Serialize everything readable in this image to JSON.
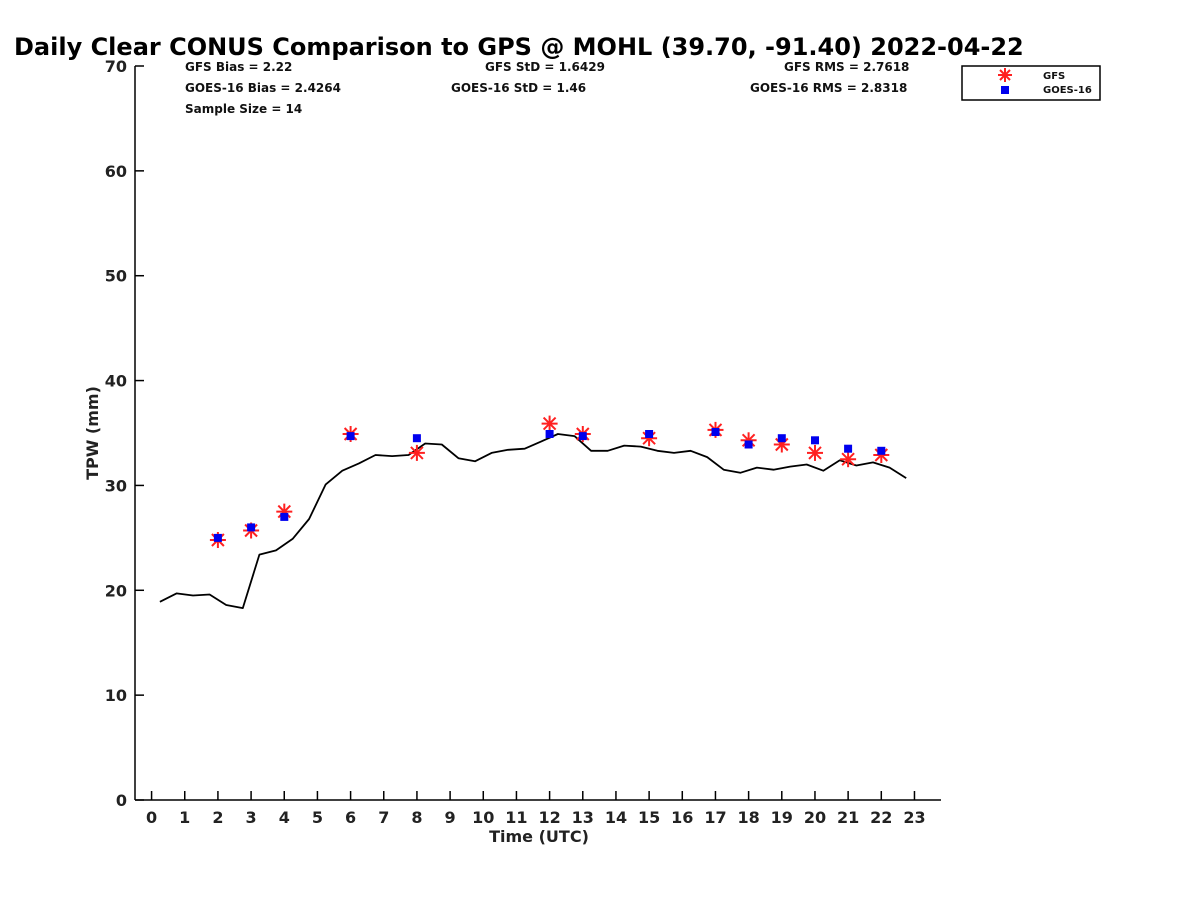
{
  "chart_data": {
    "type": "line",
    "title": "Daily Clear CONUS Comparison to GPS @ MOHL (39.70, -91.40) 2022-04-22",
    "xlabel": "Time (UTC)",
    "ylabel": "TPW (mm)",
    "xlim": [
      -0.5,
      23.8
    ],
    "ylim": [
      0,
      70
    ],
    "x_ticks": [
      "0",
      "1",
      "2",
      "3",
      "4",
      "5",
      "6",
      "7",
      "8",
      "9",
      "10",
      "11",
      "12",
      "13",
      "14",
      "15",
      "16",
      "17",
      "18",
      "19",
      "20",
      "21",
      "22",
      "23"
    ],
    "y_ticks": [
      "0",
      "10",
      "20",
      "30",
      "40",
      "50",
      "60",
      "70"
    ],
    "grid": false,
    "legend_position": "top-right",
    "stats": [
      {
        "id": "gfs-bias",
        "text": "GFS Bias = 2.22"
      },
      {
        "id": "goes-bias",
        "text": "GOES-16 Bias = 2.4264"
      },
      {
        "id": "sample-size",
        "text": "Sample Size = 14"
      },
      {
        "id": "gfs-std",
        "text": "GFS StD = 1.6429"
      },
      {
        "id": "goes-std",
        "text": "GOES-16 StD = 1.46"
      },
      {
        "id": "gfs-rms",
        "text": "GFS RMS = 2.7618"
      },
      {
        "id": "goes-rms",
        "text": "GOES-16 RMS = 2.8318"
      }
    ],
    "series": [
      {
        "name": "",
        "kind": "line",
        "color": "#000000",
        "x": [
          0.25,
          0.75,
          1.25,
          1.75,
          2.25,
          2.75,
          3.25,
          3.75,
          4.25,
          4.75,
          5.25,
          5.75,
          6.25,
          6.75,
          7.25,
          7.75,
          8.25,
          8.75,
          9.25,
          9.75,
          10.25,
          10.75,
          11.25,
          11.75,
          12.25,
          12.75,
          13.25,
          13.75,
          14.25,
          14.75,
          15.25,
          15.75,
          16.25,
          16.75,
          17.25,
          17.75,
          18.25,
          18.75,
          19.25,
          19.75,
          20.25,
          20.75,
          21.25,
          21.75,
          22.25,
          22.75
        ],
        "values": [
          18.9,
          19.7,
          19.5,
          19.6,
          18.6,
          18.3,
          23.4,
          23.8,
          24.9,
          26.8,
          30.1,
          31.4,
          32.1,
          32.9,
          32.8,
          32.9,
          34.0,
          33.9,
          32.6,
          32.3,
          33.1,
          33.4,
          33.5,
          34.2,
          34.9,
          34.7,
          33.3,
          33.3,
          33.8,
          33.7,
          33.3,
          33.1,
          33.3,
          32.7,
          31.5,
          31.2,
          31.7,
          31.5,
          31.8,
          32.0,
          31.4,
          32.4,
          31.9,
          32.2,
          31.7,
          30.7
        ]
      },
      {
        "name": "GFS",
        "kind": "scatter",
        "marker": "asterisk",
        "color": "#ff2020",
        "x": [
          2,
          3,
          4,
          6,
          8,
          12,
          13,
          15,
          17,
          18,
          19,
          20,
          21,
          22
        ],
        "values": [
          24.8,
          25.7,
          27.5,
          34.9,
          33.1,
          35.9,
          34.9,
          34.5,
          35.3,
          34.3,
          33.9,
          33.1,
          32.5,
          32.9
        ]
      },
      {
        "name": "GOES-16",
        "kind": "scatter",
        "marker": "square",
        "color": "#0000ee",
        "x": [
          2,
          3,
          4,
          6,
          8,
          12,
          13,
          15,
          17,
          18,
          19,
          20,
          21,
          22
        ],
        "values": [
          25.0,
          26.0,
          27.0,
          34.7,
          34.5,
          34.9,
          34.7,
          34.9,
          35.1,
          33.9,
          34.5,
          34.3,
          33.5,
          33.3
        ]
      }
    ]
  }
}
